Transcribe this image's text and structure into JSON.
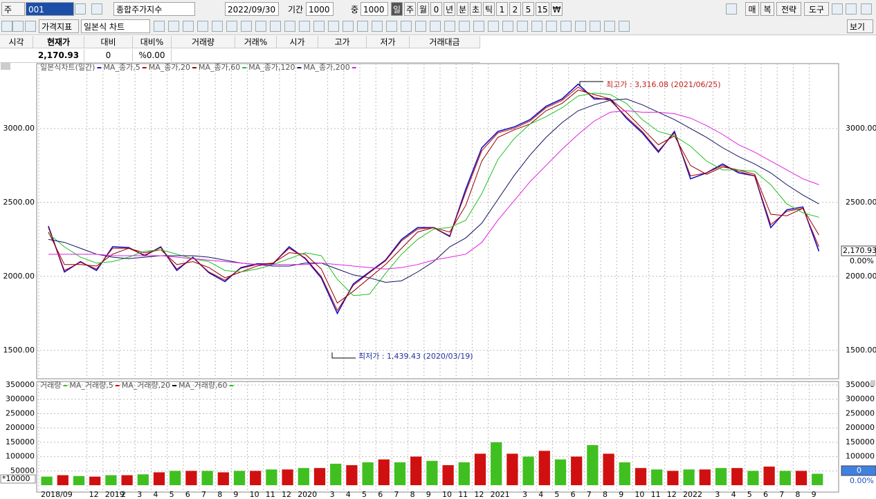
{
  "toolbar": {
    "code_label": "주",
    "code": "001",
    "name": "종합주가지수",
    "date": "2022/09/30",
    "period_label": "기간",
    "period": "1000",
    "mid_label": "중",
    "mid": "1000",
    "units": [
      "일",
      "주",
      "월",
      "0",
      "년",
      "분",
      "초",
      "틱",
      "1",
      "2",
      "5",
      "15",
      "₩"
    ],
    "right_buttons": [
      "매",
      "복",
      "전략",
      "도구"
    ],
    "indicator": "가격지표",
    "chart_kind": "일본식 차트",
    "view": "보기"
  },
  "info": {
    "headers": [
      "시각",
      "현재가",
      "대비",
      "대비%",
      "거래량",
      "거래%",
      "시가",
      "고가",
      "저가",
      "거래대금"
    ],
    "current": "2,170.93",
    "change": "0",
    "change_pct": "%0.00"
  },
  "chart_data": [
    {
      "type": "line",
      "categories": [
        "2018/09",
        null,
        null,
        "12",
        "2019",
        "2",
        "3",
        "4",
        "5",
        "6",
        "7",
        "8",
        "9",
        "10",
        "11",
        "12",
        "2020",
        null,
        "3",
        "4",
        "5",
        "6",
        "7",
        "8",
        "9",
        "10",
        "11",
        "12",
        "2021",
        null,
        "3",
        "4",
        "5",
        "6",
        "7",
        "8",
        "9",
        "10",
        "11",
        "12",
        "2022",
        null,
        "3",
        "4",
        "5",
        "6",
        "7",
        "8",
        "9"
      ],
      "series": [
        {
          "name": "일본식차트(일간)",
          "color": "#1010c8",
          "values": [
            2340,
            2030,
            2100,
            2040,
            2200,
            2195,
            2140,
            2200,
            2040,
            2130,
            2025,
            1965,
            2060,
            2085,
            2085,
            2200,
            2120,
            1990,
            1750,
            1950,
            2030,
            2110,
            2250,
            2330,
            2330,
            2270,
            2590,
            2870,
            2980,
            3010,
            3060,
            3150,
            3200,
            3300,
            3200,
            3200,
            3070,
            2970,
            2840,
            2980,
            2660,
            2700,
            2760,
            2700,
            2680,
            2330,
            2450,
            2470,
            2170
          ]
        },
        {
          "name": "MA_종가,5",
          "color": "#c00000",
          "values": [
            2330,
            2040,
            2095,
            2050,
            2190,
            2190,
            2145,
            2195,
            2050,
            2125,
            2030,
            1975,
            2055,
            2080,
            2090,
            2190,
            2125,
            2000,
            1770,
            1940,
            2025,
            2105,
            2240,
            2320,
            2330,
            2275,
            2570,
            2850,
            2970,
            3000,
            3050,
            3140,
            3190,
            3280,
            3210,
            3190,
            3080,
            2980,
            2850,
            2970,
            2680,
            2700,
            2750,
            2710,
            2680,
            2350,
            2440,
            2460,
            2200
          ]
        },
        {
          "name": "MA_종가,20",
          "color": "#8b0000",
          "values": [
            2300,
            2080,
            2080,
            2070,
            2150,
            2190,
            2160,
            2180,
            2080,
            2100,
            2060,
            1990,
            2030,
            2070,
            2090,
            2160,
            2150,
            2050,
            1820,
            1900,
            1990,
            2080,
            2190,
            2300,
            2330,
            2300,
            2480,
            2780,
            2940,
            2990,
            3030,
            3120,
            3170,
            3260,
            3230,
            3200,
            3110,
            3000,
            2890,
            2950,
            2750,
            2690,
            2740,
            2720,
            2690,
            2420,
            2410,
            2460,
            2280
          ]
        },
        {
          "name": "MA_종가,60",
          "color": "#20c020",
          "values": [
            2290,
            2200,
            2130,
            2090,
            2100,
            2130,
            2170,
            2180,
            2150,
            2120,
            2100,
            2040,
            2030,
            2050,
            2080,
            2120,
            2160,
            2140,
            1980,
            1870,
            1880,
            2020,
            2150,
            2250,
            2320,
            2330,
            2380,
            2560,
            2790,
            2930,
            3030,
            3080,
            3140,
            3220,
            3240,
            3230,
            3170,
            3060,
            2980,
            2950,
            2880,
            2780,
            2720,
            2720,
            2710,
            2620,
            2490,
            2430,
            2400
          ]
        },
        {
          "name": "MA_종가,120",
          "color": "#101060",
          "values": [
            2250,
            2230,
            2190,
            2150,
            2130,
            2120,
            2130,
            2140,
            2140,
            2140,
            2130,
            2110,
            2090,
            2080,
            2070,
            2070,
            2090,
            2090,
            2050,
            2010,
            1990,
            1960,
            1970,
            2030,
            2100,
            2200,
            2260,
            2360,
            2520,
            2680,
            2820,
            2940,
            3040,
            3120,
            3160,
            3190,
            3200,
            3160,
            3110,
            3060,
            3000,
            2940,
            2870,
            2810,
            2760,
            2700,
            2620,
            2550,
            2490
          ]
        },
        {
          "name": "MA_종가,200",
          "color": "#e020e0",
          "values": [
            2150,
            2150,
            2150,
            2150,
            2140,
            2140,
            2140,
            2140,
            2130,
            2120,
            2110,
            2100,
            2090,
            2080,
            2080,
            2080,
            2080,
            2090,
            2080,
            2070,
            2060,
            2050,
            2060,
            2080,
            2110,
            2130,
            2150,
            2230,
            2380,
            2510,
            2640,
            2750,
            2860,
            2960,
            3050,
            3110,
            3120,
            3110,
            3110,
            3100,
            3070,
            3020,
            2960,
            2890,
            2840,
            2780,
            2720,
            2660,
            2620
          ]
        }
      ],
      "ylim": [
        1308,
        3439
      ],
      "yticks": [
        {
          "value": 1500,
          "label": "1500.00"
        },
        {
          "value": 2000,
          "label": "2000.00"
        },
        {
          "value": 2500,
          "label": "2500.00"
        },
        {
          "value": 3000,
          "label": "3000.00"
        }
      ],
      "grid": true,
      "high_label": "최고가 : 3,316.08 (2021/06/25)",
      "low_label": "최저가 : 1,439.43 (2020/03/19)",
      "last_label": "2,170.93",
      "last_pct": "0.00%"
    },
    {
      "type": "bar",
      "categories": [
        "2018/09",
        null,
        null,
        "12",
        "2019",
        "2",
        "3",
        "4",
        "5",
        "6",
        "7",
        "8",
        "9",
        "10",
        "11",
        "12",
        "2020",
        null,
        "3",
        "4",
        "5",
        "6",
        "7",
        "8",
        "9",
        "10",
        "11",
        "12",
        "2021",
        null,
        "3",
        "4",
        "5",
        "6",
        "7",
        "8",
        "9",
        "10",
        "11",
        "12",
        "2022",
        null,
        "3",
        "4",
        "5",
        "6",
        "7",
        "8",
        "9"
      ],
      "series": [
        {
          "name": "거래량",
          "color": "#40c020",
          "values": [
            30000,
            35000,
            32000,
            30000,
            35000,
            35000,
            38000,
            45000,
            50000,
            50000,
            50000,
            45000,
            50000,
            50000,
            55000,
            55000,
            60000,
            60000,
            75000,
            70000,
            80000,
            90000,
            80000,
            100000,
            85000,
            70000,
            80000,
            110000,
            150000,
            110000,
            100000,
            120000,
            90000,
            100000,
            140000,
            110000,
            80000,
            60000,
            55000,
            50000,
            55000,
            55000,
            60000,
            60000,
            50000,
            65000,
            50000,
            50000,
            40000
          ]
        }
      ],
      "ma_labels": [
        "MA_거래량,5",
        "MA_거래량,20",
        "MA_거래량,60"
      ],
      "ylim": [
        -24000,
        362000
      ],
      "yticks": [
        50000,
        100000,
        150000,
        200000,
        250000,
        300000,
        350000
      ],
      "grid": true,
      "unit_label": "*10000",
      "last_label": "0",
      "last_pct": "0.00%"
    }
  ]
}
